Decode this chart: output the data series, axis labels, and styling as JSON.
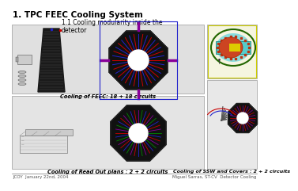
{
  "title": "1. TPC FEEC Cooling System",
  "subtitle": "1.1 Cooling modularity inside the\ndetector",
  "bg_color": "#ffffff",
  "panel_left_top_bg": "#e0e0e0",
  "panel_left_bot_bg": "#e4e4e4",
  "panel_right_top_bg": "#f5f5e0",
  "panel_right_bot_bg": "#e8e8e8",
  "border_color": "#999999",
  "title_fontsize": 7.5,
  "subtitle_fontsize": 5.5,
  "caption_fontsize": 4.8,
  "caption_feec": "Cooling of FEEC: 18 + 18 circuits",
  "caption_readout": "Cooling of Read Out plans : 2 + 2 circuits",
  "caption_ssw": "Cooling of SSW and Covers : 2 + 2 circuits",
  "footer_left": "JCOY  January 22nd, 2004",
  "footer_right": "Miguel Sarras, ST-CV  Detector Cooling",
  "footer_fontsize": 4.0,
  "accent_red": "#cc0000",
  "accent_blue": "#2222cc",
  "accent_purple": "#880099",
  "accent_green": "#006600"
}
